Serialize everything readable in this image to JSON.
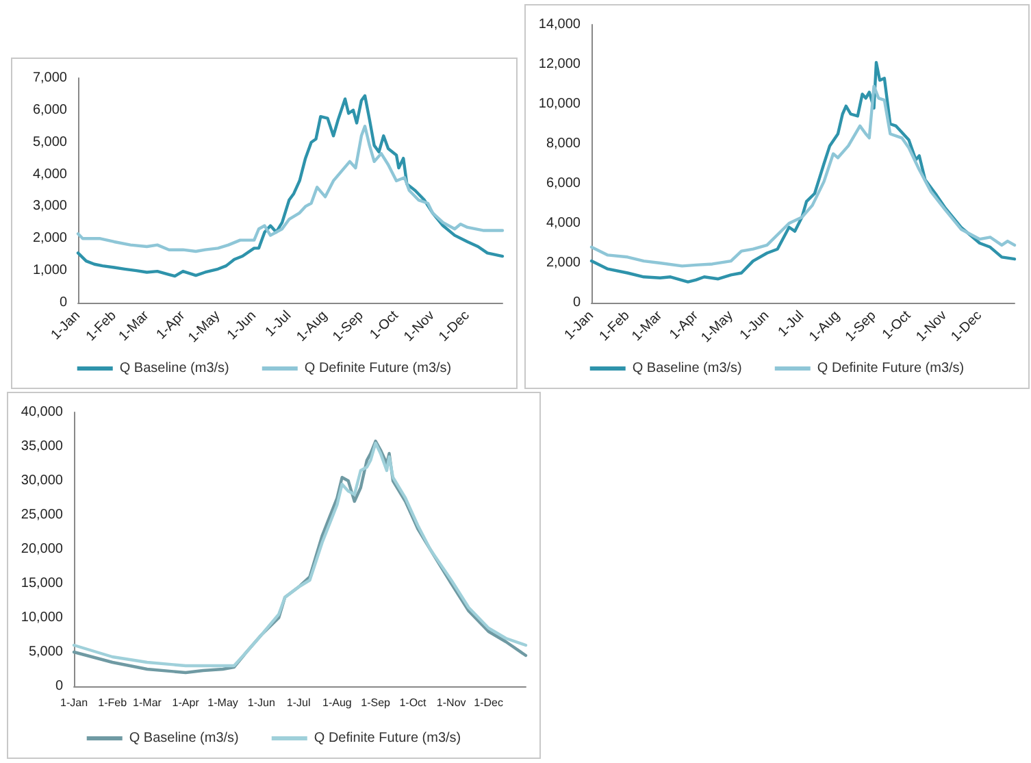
{
  "chart_data": [
    {
      "type": "line",
      "legend": "bottom",
      "line_style": "solid",
      "marker": "none",
      "ylim": [
        0,
        7000
      ],
      "yticks": [
        {
          "value": 0,
          "label": "0"
        },
        {
          "value": 1000,
          "label": "1,000"
        },
        {
          "value": 2000,
          "label": "2,000"
        },
        {
          "value": 3000,
          "label": "3,000"
        },
        {
          "value": 4000,
          "label": "4,000"
        },
        {
          "value": 5000,
          "label": "5,000"
        },
        {
          "value": 6000,
          "label": "6,000"
        },
        {
          "value": 7000,
          "label": "7,000"
        }
      ],
      "xlim": [
        "--01-01",
        "--12-31"
      ],
      "xticks": [
        {
          "value": "--01-01",
          "label": "1-Jan"
        },
        {
          "value": "--02-01",
          "label": "1-Feb"
        },
        {
          "value": "--03-01",
          "label": "1-Mar"
        },
        {
          "value": "--04-01",
          "label": "1-Apr"
        },
        {
          "value": "--05-01",
          "label": "1-May"
        },
        {
          "value": "--06-01",
          "label": "1-Jun"
        },
        {
          "value": "--07-01",
          "label": "1-Jul"
        },
        {
          "value": "--08-01",
          "label": "1-Aug"
        },
        {
          "value": "--09-01",
          "label": "1-Sep"
        },
        {
          "value": "--10-01",
          "label": "1-Oct"
        },
        {
          "value": "--11-01",
          "label": "1-Nov"
        },
        {
          "value": "--12-01",
          "label": "1-Dec"
        }
      ],
      "series": [
        {
          "name": "Q Baseline (m3/s)",
          "color": "#2e93ab",
          "x": [
            "--01-01",
            "--01-08",
            "--01-15",
            "--01-22",
            "--02-01",
            "--02-10",
            "--02-20",
            "--03-01",
            "--03-10",
            "--03-20",
            "--03-25",
            "--04-01",
            "--04-08",
            "--04-12",
            "--04-20",
            "--05-01",
            "--05-08",
            "--05-15",
            "--05-22",
            "--06-01",
            "--06-05",
            "--06-10",
            "--06-15",
            "--06-20",
            "--06-25",
            "--07-01",
            "--07-05",
            "--07-10",
            "--07-15",
            "--07-20",
            "--07-24",
            "--07-28",
            "--08-03",
            "--08-08",
            "--08-12",
            "--08-18",
            "--08-21",
            "--08-25",
            "--08-28",
            "--09-01",
            "--09-04",
            "--09-08",
            "--09-12",
            "--09-16",
            "--09-20",
            "--09-24",
            "--10-01",
            "--10-03",
            "--10-07",
            "--10-10",
            "--10-17",
            "--10-25",
            "--11-01",
            "--11-10",
            "--11-20",
            "--12-01",
            "--12-10",
            "--12-18",
            "--12-31"
          ],
          "values": [
            1550,
            1300,
            1200,
            1150,
            1100,
            1050,
            1000,
            950,
            980,
            880,
            830,
            980,
            900,
            850,
            950,
            1050,
            1150,
            1350,
            1450,
            1700,
            1700,
            2200,
            2400,
            2200,
            2500,
            3200,
            3400,
            3800,
            4500,
            5000,
            5100,
            5800,
            5750,
            5200,
            5700,
            6350,
            5900,
            6000,
            5600,
            6300,
            6450,
            5700,
            4900,
            4700,
            5200,
            4800,
            4600,
            4200,
            4500,
            3700,
            3500,
            3200,
            2800,
            2400,
            2100,
            1900,
            1750,
            1550,
            1450
          ]
        },
        {
          "name": "Q Definite Future (m3/s)",
          "color": "#8ec6d7",
          "x": [
            "--01-01",
            "--01-05",
            "--01-20",
            "--02-01",
            "--02-15",
            "--03-01",
            "--03-10",
            "--03-20",
            "--04-01",
            "--04-12",
            "--04-20",
            "--05-01",
            "--05-10",
            "--05-20",
            "--06-01",
            "--06-05",
            "--06-10",
            "--06-15",
            "--06-25",
            "--07-01",
            "--07-10",
            "--07-15",
            "--07-20",
            "--07-25",
            "--08-01",
            "--08-08",
            "--08-15",
            "--08-22",
            "--08-27",
            "--09-01",
            "--09-04",
            "--09-08",
            "--09-12",
            "--09-18",
            "--09-24",
            "--10-01",
            "--10-08",
            "--10-12",
            "--10-20",
            "--10-28",
            "--11-01",
            "--11-10",
            "--11-20",
            "--11-25",
            "--12-01",
            "--12-15",
            "--12-31"
          ],
          "values": [
            2150,
            2000,
            2000,
            1900,
            1800,
            1750,
            1800,
            1650,
            1650,
            1600,
            1650,
            1700,
            1800,
            1950,
            1950,
            2300,
            2400,
            2100,
            2300,
            2600,
            2800,
            3000,
            3100,
            3600,
            3300,
            3800,
            4100,
            4400,
            4200,
            5200,
            5500,
            4900,
            4400,
            4650,
            4300,
            3800,
            3900,
            3500,
            3200,
            3100,
            2800,
            2500,
            2300,
            2450,
            2350,
            2250,
            2250
          ]
        }
      ]
    },
    {
      "type": "line",
      "legend": "bottom",
      "line_style": "solid",
      "marker": "none",
      "ylim": [
        0,
        14000
      ],
      "yticks": [
        {
          "value": 0,
          "label": "0"
        },
        {
          "value": 2000,
          "label": "2,000"
        },
        {
          "value": 4000,
          "label": "4,000"
        },
        {
          "value": 6000,
          "label": "6,000"
        },
        {
          "value": 8000,
          "label": "8,000"
        },
        {
          "value": 10000,
          "label": "10,000"
        },
        {
          "value": 12000,
          "label": "12,000"
        },
        {
          "value": 14000,
          "label": "14,000"
        }
      ],
      "xlim": [
        "--01-01",
        "--12-31"
      ],
      "xticks": [
        {
          "value": "--01-01",
          "label": "1-Jan"
        },
        {
          "value": "--02-01",
          "label": "1-Feb"
        },
        {
          "value": "--03-01",
          "label": "1-Mar"
        },
        {
          "value": "--04-01",
          "label": "1-Apr"
        },
        {
          "value": "--05-01",
          "label": "1-May"
        },
        {
          "value": "--06-01",
          "label": "1-Jun"
        },
        {
          "value": "--07-01",
          "label": "1-Jul"
        },
        {
          "value": "--08-01",
          "label": "1-Aug"
        },
        {
          "value": "--09-01",
          "label": "1-Sep"
        },
        {
          "value": "--10-01",
          "label": "1-Oct"
        },
        {
          "value": "--11-01",
          "label": "1-Nov"
        },
        {
          "value": "--12-01",
          "label": "1-Dec"
        }
      ],
      "series": [
        {
          "name": "Q Baseline (m3/s)",
          "color": "#2e93ab",
          "x": [
            "--01-01",
            "--01-15",
            "--02-01",
            "--02-15",
            "--03-01",
            "--03-10",
            "--03-25",
            "--04-01",
            "--04-08",
            "--04-20",
            "--05-01",
            "--05-10",
            "--05-20",
            "--06-01",
            "--06-10",
            "--06-20",
            "--06-25",
            "--07-01",
            "--07-05",
            "--07-12",
            "--07-20",
            "--07-25",
            "--08-01",
            "--08-05",
            "--08-08",
            "--08-12",
            "--08-18",
            "--08-22",
            "--08-25",
            "--08-28",
            "--09-01",
            "--09-03",
            "--09-06",
            "--09-10",
            "--09-15",
            "--09-20",
            "--10-01",
            "--10-07",
            "--10-10",
            "--10-15",
            "--10-25",
            "--11-01",
            "--11-15",
            "--12-01",
            "--12-10",
            "--12-20",
            "--12-31"
          ],
          "values": [
            2100,
            1700,
            1500,
            1300,
            1250,
            1300,
            1050,
            1150,
            1300,
            1200,
            1400,
            1500,
            2100,
            2500,
            2700,
            3800,
            3600,
            4300,
            5100,
            5500,
            7000,
            7900,
            8500,
            9500,
            9900,
            9500,
            9400,
            10500,
            10300,
            10600,
            9800,
            12100,
            11200,
            11300,
            9000,
            8900,
            8200,
            7200,
            7400,
            6200,
            5400,
            4800,
            3800,
            3000,
            2800,
            2300,
            2200
          ]
        },
        {
          "name": "Q Definite Future (m3/s)",
          "color": "#8ec6d7",
          "x": [
            "--01-01",
            "--01-15",
            "--02-01",
            "--02-15",
            "--03-01",
            "--03-20",
            "--04-01",
            "--04-15",
            "--05-01",
            "--05-10",
            "--05-20",
            "--06-01",
            "--06-20",
            "--07-01",
            "--07-10",
            "--07-20",
            "--07-28",
            "--08-01",
            "--08-10",
            "--08-20",
            "--08-25",
            "--08-28",
            "--09-01",
            "--09-05",
            "--09-10",
            "--09-15",
            "--09-25",
            "--10-01",
            "--10-10",
            "--10-20",
            "--11-01",
            "--11-15",
            "--12-01",
            "--12-10",
            "--12-20",
            "--12-25",
            "--12-31"
          ],
          "values": [
            2800,
            2400,
            2300,
            2100,
            2000,
            1850,
            1900,
            1950,
            2100,
            2600,
            2700,
            2900,
            4000,
            4300,
            4900,
            6100,
            7500,
            7300,
            7900,
            8900,
            8500,
            8300,
            10900,
            10300,
            10200,
            8500,
            8300,
            7800,
            6700,
            5600,
            4700,
            3700,
            3200,
            3300,
            2900,
            3100,
            2900
          ]
        }
      ]
    },
    {
      "type": "line",
      "legend": "bottom",
      "line_style": "solid",
      "marker": "none",
      "ylim": [
        0,
        40000
      ],
      "yticks": [
        {
          "value": 0,
          "label": "0"
        },
        {
          "value": 5000,
          "label": "5,000"
        },
        {
          "value": 10000,
          "label": "10,000"
        },
        {
          "value": 15000,
          "label": "15,000"
        },
        {
          "value": 20000,
          "label": "20,000"
        },
        {
          "value": 25000,
          "label": "25,000"
        },
        {
          "value": 30000,
          "label": "30,000"
        },
        {
          "value": 35000,
          "label": "35,000"
        },
        {
          "value": 40000,
          "label": "40,000"
        }
      ],
      "xlim": [
        "--01-01",
        "--12-31"
      ],
      "xticks": [
        {
          "value": "--01-01",
          "label": "1-Jan"
        },
        {
          "value": "--02-01",
          "label": "1-Feb"
        },
        {
          "value": "--03-01",
          "label": "1-Mar"
        },
        {
          "value": "--04-01",
          "label": "1-Apr"
        },
        {
          "value": "--05-01",
          "label": "1-May"
        },
        {
          "value": "--06-01",
          "label": "1-Jun"
        },
        {
          "value": "--07-01",
          "label": "1-Jul"
        },
        {
          "value": "--08-01",
          "label": "1-Aug"
        },
        {
          "value": "--09-01",
          "label": "1-Sep"
        },
        {
          "value": "--10-01",
          "label": "1-Oct"
        },
        {
          "value": "--11-01",
          "label": "1-Nov"
        },
        {
          "value": "--12-01",
          "label": "1-Dec"
        }
      ],
      "series": [
        {
          "name": "Q Baseline (m3/s)",
          "color": "#6f9aa3",
          "x": [
            "--01-01",
            "--02-01",
            "--03-01",
            "--04-01",
            "--04-15",
            "--05-01",
            "--05-10",
            "--05-20",
            "--06-01",
            "--06-15",
            "--06-20",
            "--07-01",
            "--07-10",
            "--07-20",
            "--08-01",
            "--08-05",
            "--08-10",
            "--08-15",
            "--08-20",
            "--08-25",
            "--08-28",
            "--09-01",
            "--09-05",
            "--09-10",
            "--09-12",
            "--09-15",
            "--09-25",
            "--10-05",
            "--10-15",
            "--11-01",
            "--11-15",
            "--12-01",
            "--12-15",
            "--12-31"
          ],
          "values": [
            5000,
            3500,
            2500,
            2000,
            2300,
            2500,
            2800,
            5000,
            7500,
            10000,
            13000,
            14500,
            16000,
            22000,
            27500,
            30500,
            30000,
            27000,
            29000,
            33000,
            34000,
            35800,
            34500,
            32500,
            34000,
            30000,
            27000,
            23000,
            20000,
            15000,
            11000,
            8000,
            6500,
            4500
          ]
        },
        {
          "name": "Q Definite Future (m3/s)",
          "color": "#9fd0da",
          "x": [
            "--01-01",
            "--02-01",
            "--03-01",
            "--04-01",
            "--05-01",
            "--05-10",
            "--05-20",
            "--06-01",
            "--06-15",
            "--06-20",
            "--07-01",
            "--07-10",
            "--07-20",
            "--08-01",
            "--08-05",
            "--08-10",
            "--08-15",
            "--08-20",
            "--08-25",
            "--08-28",
            "--09-01",
            "--09-05",
            "--09-10",
            "--09-12",
            "--09-15",
            "--09-25",
            "--10-05",
            "--10-15",
            "--11-01",
            "--11-15",
            "--12-01",
            "--12-15",
            "--12-31"
          ],
          "values": [
            6000,
            4300,
            3500,
            3000,
            3000,
            3000,
            5000,
            7500,
            10500,
            13000,
            14500,
            15500,
            21000,
            26500,
            29500,
            28500,
            28000,
            31500,
            32000,
            33000,
            35500,
            34000,
            31500,
            33500,
            30500,
            27500,
            23500,
            20000,
            15500,
            11500,
            8500,
            7000,
            6000
          ]
        }
      ]
    }
  ]
}
